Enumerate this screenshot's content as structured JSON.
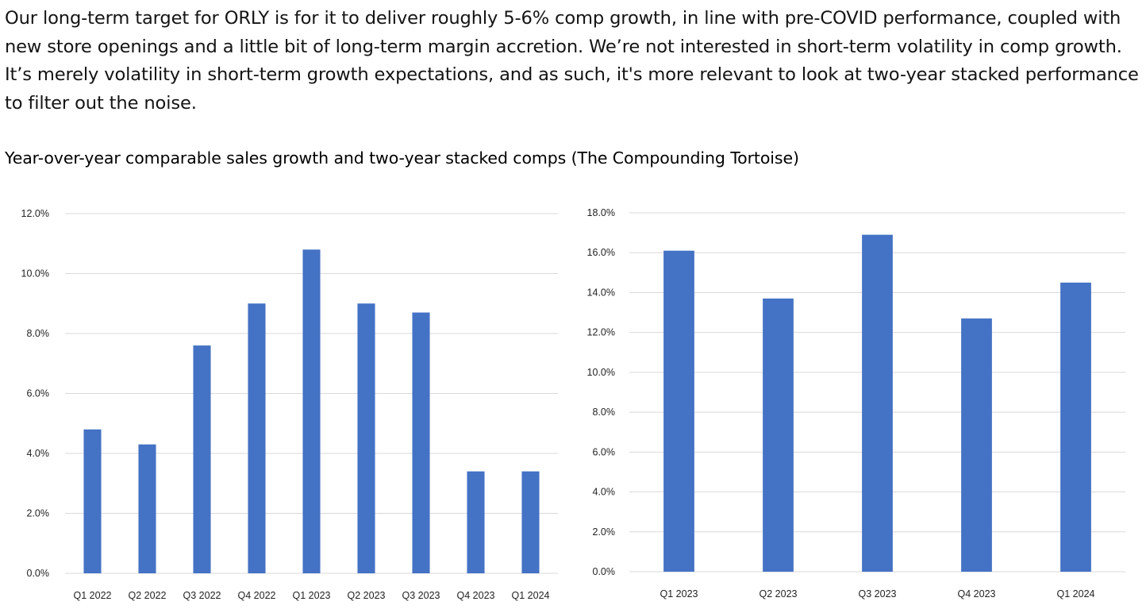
{
  "intro": {
    "lines": [
      "Our long-term target for ORLY is for it to deliver roughly 5-6% comp growth, in line with pre-COVID performance, coupled with",
      "new store openings and a little bit of long-term margin accretion. We’re not interested in short-term volatility in comp growth.",
      "It’s merely volatility in short-term growth expectations, and as such, it's more relevant to look at two-year stacked performance",
      "to filter out the noise."
    ]
  },
  "caption": "Year-over-year comparable sales growth and two-year stacked comps (The Compounding Tortoise)",
  "colors": {
    "bar": "#4472C4",
    "grid": "#d9d9d9",
    "text": "#222222"
  },
  "chart_data": [
    {
      "type": "bar",
      "title": "",
      "xlabel": "",
      "ylabel": "",
      "categories": [
        "Q1 2022",
        "Q2 2022",
        "Q3 2022",
        "Q4 2022",
        "Q1 2023",
        "Q2 2023",
        "Q3 2023",
        "Q4 2023",
        "Q1 2024"
      ],
      "values": [
        4.8,
        4.3,
        7.6,
        9.0,
        10.8,
        9.0,
        8.7,
        3.4,
        3.4
      ],
      "ylim": [
        0,
        12
      ],
      "yticks": [
        0,
        2,
        4,
        6,
        8,
        10,
        12
      ],
      "ytick_labels": [
        "0.0%",
        "2.0%",
        "4.0%",
        "6.0%",
        "8.0%",
        "10.0%",
        "12.0%"
      ],
      "grid": true
    },
    {
      "type": "bar",
      "title": "",
      "xlabel": "",
      "ylabel": "",
      "categories": [
        "Q1 2023",
        "Q2 2023",
        "Q3 2023",
        "Q4 2023",
        "Q1 2024"
      ],
      "values": [
        16.1,
        13.7,
        16.9,
        12.7,
        14.5
      ],
      "ylim": [
        0,
        18
      ],
      "yticks": [
        0,
        2,
        4,
        6,
        8,
        10,
        12,
        14,
        16,
        18
      ],
      "ytick_labels": [
        "0.0%",
        "2.0%",
        "4.0%",
        "6.0%",
        "8.0%",
        "10.0%",
        "12.0%",
        "14.0%",
        "16.0%",
        "18.0%"
      ],
      "grid": true
    }
  ]
}
